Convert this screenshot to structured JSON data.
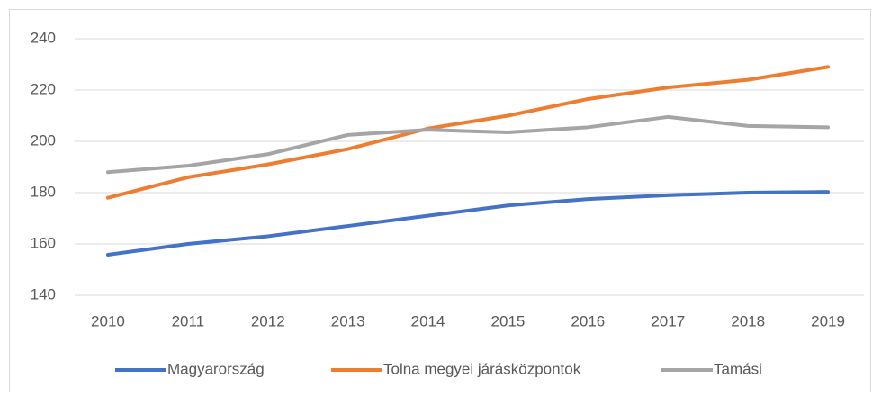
{
  "chart_data": {
    "type": "line",
    "categories": [
      "2010",
      "2011",
      "2012",
      "2013",
      "2014",
      "2015",
      "2016",
      "2017",
      "2018",
      "2019"
    ],
    "series": [
      {
        "name": "Magyarország",
        "color": "#4472c4",
        "values": [
          155.8,
          160,
          163,
          167,
          171,
          175,
          177.5,
          179,
          180,
          180.3
        ]
      },
      {
        "name": "Tolna megyei járásközpontok",
        "color": "#ed7d31",
        "values": [
          178,
          186,
          191,
          197,
          205,
          210,
          216.5,
          221,
          224,
          229
        ]
      },
      {
        "name": "Tamási",
        "color": "#a5a5a5",
        "values": [
          188,
          190.5,
          195,
          202.5,
          204.5,
          203.5,
          205.5,
          209.5,
          206,
          205.5
        ]
      }
    ],
    "ylim": [
      140,
      240
    ],
    "yticks": [
      140,
      160,
      180,
      200,
      220,
      240
    ],
    "grid": true,
    "legend": "bottom"
  }
}
